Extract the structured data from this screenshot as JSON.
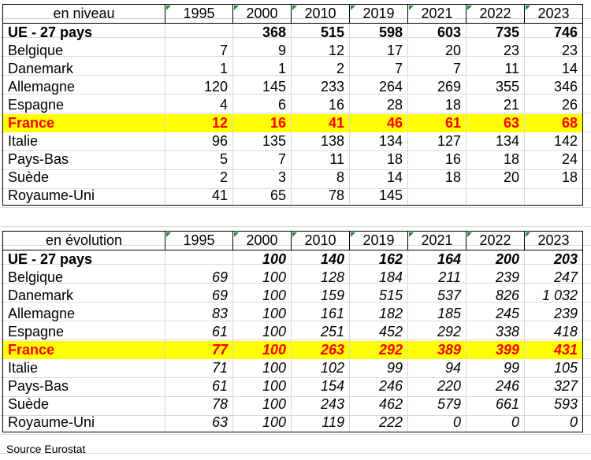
{
  "tables": [
    {
      "header": [
        "en niveau",
        "1995",
        "2000",
        "2010",
        "2019",
        "2021",
        "2022",
        "2023"
      ],
      "rows": [
        {
          "label": "UE - 27 pays",
          "values": [
            "",
            "368",
            "515",
            "598",
            "603",
            "735",
            "746"
          ],
          "style": "bold"
        },
        {
          "label": "Belgique",
          "values": [
            "7",
            "9",
            "12",
            "17",
            "20",
            "23",
            "23"
          ],
          "style": ""
        },
        {
          "label": "Danemark",
          "values": [
            "1",
            "1",
            "2",
            "7",
            "7",
            "11",
            "14"
          ],
          "style": ""
        },
        {
          "label": "Allemagne",
          "values": [
            "120",
            "145",
            "233",
            "264",
            "269",
            "355",
            "346"
          ],
          "style": ""
        },
        {
          "label": "Espagne",
          "values": [
            "4",
            "6",
            "16",
            "28",
            "18",
            "21",
            "26"
          ],
          "style": ""
        },
        {
          "label": "France",
          "values": [
            "12",
            "16",
            "41",
            "46",
            "61",
            "63",
            "68"
          ],
          "style": "highlight"
        },
        {
          "label": "Italie",
          "values": [
            "96",
            "135",
            "138",
            "134",
            "127",
            "134",
            "142"
          ],
          "style": ""
        },
        {
          "label": "Pays-Bas",
          "values": [
            "5",
            "7",
            "11",
            "18",
            "16",
            "18",
            "24"
          ],
          "style": ""
        },
        {
          "label": "Suède",
          "values": [
            "2",
            "3",
            "8",
            "14",
            "18",
            "20",
            "18"
          ],
          "style": ""
        },
        {
          "label": "Royaume-Uni",
          "values": [
            "41",
            "65",
            "78",
            "145",
            "",
            "",
            ""
          ],
          "style": ""
        }
      ]
    },
    {
      "header": [
        "en évolution",
        "1995",
        "2000",
        "2010",
        "2019",
        "2021",
        "2022",
        "2023"
      ],
      "rows": [
        {
          "label": "UE - 27 pays",
          "values": [
            "",
            "100",
            "140",
            "162",
            "164",
            "200",
            "203"
          ],
          "style": "bold"
        },
        {
          "label": "Belgique",
          "values": [
            "69",
            "100",
            "128",
            "184",
            "211",
            "239",
            "247"
          ],
          "style": ""
        },
        {
          "label": "Danemark",
          "values": [
            "69",
            "100",
            "159",
            "515",
            "537",
            "826",
            "1 032"
          ],
          "style": ""
        },
        {
          "label": "Allemagne",
          "values": [
            "83",
            "100",
            "161",
            "182",
            "185",
            "245",
            "239"
          ],
          "style": ""
        },
        {
          "label": "Espagne",
          "values": [
            "61",
            "100",
            "251",
            "452",
            "292",
            "338",
            "418"
          ],
          "style": ""
        },
        {
          "label": "France",
          "values": [
            "77",
            "100",
            "263",
            "292",
            "389",
            "399",
            "431"
          ],
          "style": "highlight"
        },
        {
          "label": "Italie",
          "values": [
            "71",
            "100",
            "102",
            "99",
            "94",
            "99",
            "105"
          ],
          "style": ""
        },
        {
          "label": "Pays-Bas",
          "values": [
            "61",
            "100",
            "154",
            "246",
            "220",
            "246",
            "327"
          ],
          "style": ""
        },
        {
          "label": "Suède",
          "values": [
            "78",
            "100",
            "243",
            "462",
            "579",
            "661",
            "593"
          ],
          "style": ""
        },
        {
          "label": "Royaume-Uni",
          "values": [
            "63",
            "100",
            "119",
            "222",
            "0",
            "0",
            "0"
          ],
          "style": ""
        }
      ]
    }
  ],
  "source": "Source Eurostat",
  "colors": {
    "highlight_bg": "#ffff00",
    "highlight_text": "#ff0000",
    "grid": "#d9d9d9",
    "corner_marker": "#1e8a2d"
  }
}
